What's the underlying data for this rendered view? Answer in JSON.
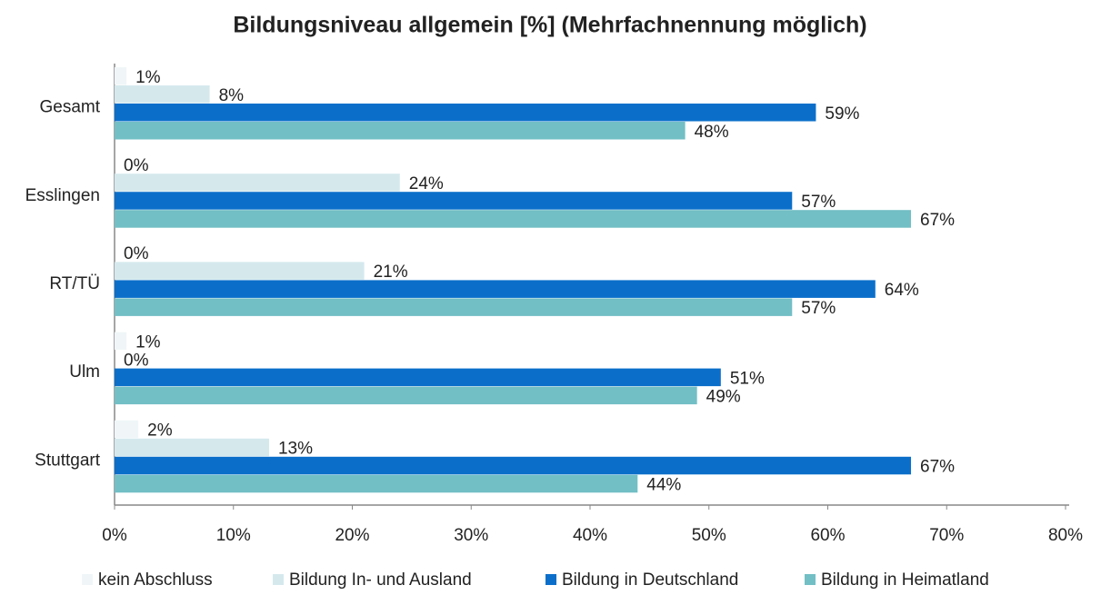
{
  "chart_data": {
    "type": "hbar",
    "title": "Bildungsniveau allgemein  [%] (Mehrfachnennung möglich)",
    "categories": [
      "Gesamt",
      "Esslingen",
      "RT/TÜ",
      "Ulm",
      "Stuttgart"
    ],
    "series": [
      {
        "name": "kein Abschluss",
        "color": "#f0f6f7",
        "values": [
          1,
          0,
          0,
          1,
          2
        ],
        "value_labels": [
          "1%",
          "0%",
          "0%",
          "1%",
          "2%"
        ]
      },
      {
        "name": "Bildung In- und Ausland",
        "color": "#d5e9ed",
        "values": [
          8,
          24,
          21,
          0,
          13
        ],
        "value_labels": [
          "8%",
          "24%",
          "21%",
          "0%",
          "13%"
        ]
      },
      {
        "name": "Bildung in Deutschland",
        "color": "#0b6fca",
        "values": [
          59,
          57,
          64,
          51,
          67
        ],
        "value_labels": [
          "59%",
          "57%",
          "64%",
          "51%",
          "67%"
        ]
      },
      {
        "name": "Bildung in Heimatland",
        "color": "#72bfc5",
        "values": [
          48,
          67,
          57,
          49,
          44
        ],
        "value_labels": [
          "48%",
          "67%",
          "57%",
          "49%",
          "44%"
        ]
      }
    ],
    "xlim": [
      0,
      80
    ],
    "xticks": [
      {
        "value": 0,
        "label": "0%"
      },
      {
        "value": 10,
        "label": "10%"
      },
      {
        "value": 20,
        "label": "20%"
      },
      {
        "value": 30,
        "label": "30%"
      },
      {
        "value": 40,
        "label": "40%"
      },
      {
        "value": 50,
        "label": "50%"
      },
      {
        "value": 60,
        "label": "60%"
      },
      {
        "value": 70,
        "label": "70%"
      },
      {
        "value": 80,
        "label": "80%"
      }
    ],
    "legend": "bottom"
  }
}
